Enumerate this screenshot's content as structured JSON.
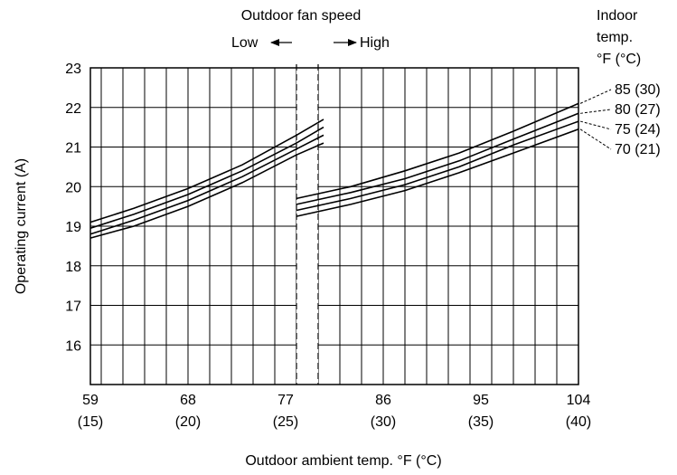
{
  "header": {
    "fan_title": "Outdoor fan speed",
    "fan_low": "Low",
    "fan_high": "High",
    "indoor_title_1": "Indoor",
    "indoor_title_2": "temp.",
    "indoor_title_3": "°F (°C)"
  },
  "chart_data": {
    "type": "line",
    "title": "",
    "xlabel": "Outdoor ambient temp. °F (°C)",
    "ylabel": "Operating current (A)",
    "xlim": [
      59,
      104
    ],
    "ylim": [
      15,
      23
    ],
    "grid": true,
    "x_ticks": [
      {
        "value": 59,
        "label": "59",
        "sub": "(15)"
      },
      {
        "value": 68,
        "label": "68",
        "sub": "(20)"
      },
      {
        "value": 77,
        "label": "77",
        "sub": "(25)"
      },
      {
        "value": 86,
        "label": "86",
        "sub": "(30)"
      },
      {
        "value": 95,
        "label": "95",
        "sub": "(35)"
      },
      {
        "value": 104,
        "label": "104",
        "sub": "(40)"
      }
    ],
    "y_ticks": [
      16,
      17,
      18,
      19,
      20,
      21,
      22,
      23
    ],
    "fan_switch_band": [
      78,
      80
    ],
    "series": [
      {
        "name": "85 (30)",
        "low": {
          "x": [
            59,
            63,
            68,
            73,
            78,
            80.5
          ],
          "y": [
            19.1,
            19.45,
            19.95,
            20.55,
            21.3,
            21.7
          ]
        },
        "high": {
          "x": [
            78,
            83,
            88,
            93,
            98,
            104
          ],
          "y": [
            19.7,
            20.0,
            20.4,
            20.85,
            21.4,
            22.1
          ]
        }
      },
      {
        "name": "80 (27)",
        "low": {
          "x": [
            59,
            63,
            68,
            73,
            78,
            80.5
          ],
          "y": [
            18.95,
            19.3,
            19.8,
            20.4,
            21.1,
            21.5
          ]
        },
        "high": {
          "x": [
            78,
            83,
            88,
            93,
            98,
            104
          ],
          "y": [
            19.55,
            19.85,
            20.2,
            20.65,
            21.2,
            21.85
          ]
        }
      },
      {
        "name": "75 (24)",
        "low": {
          "x": [
            59,
            63,
            68,
            73,
            78,
            80.5
          ],
          "y": [
            18.8,
            19.15,
            19.65,
            20.25,
            20.95,
            21.3
          ]
        },
        "high": {
          "x": [
            78,
            83,
            88,
            93,
            98,
            104
          ],
          "y": [
            19.4,
            19.7,
            20.05,
            20.5,
            21.05,
            21.65
          ]
        }
      },
      {
        "name": "70 (21)",
        "low": {
          "x": [
            59,
            63,
            68,
            73,
            78,
            80.5
          ],
          "y": [
            18.7,
            19.0,
            19.5,
            20.1,
            20.8,
            21.1
          ]
        },
        "high": {
          "x": [
            78,
            83,
            88,
            93,
            98,
            104
          ],
          "y": [
            19.25,
            19.55,
            19.9,
            20.35,
            20.85,
            21.45
          ]
        }
      }
    ]
  }
}
